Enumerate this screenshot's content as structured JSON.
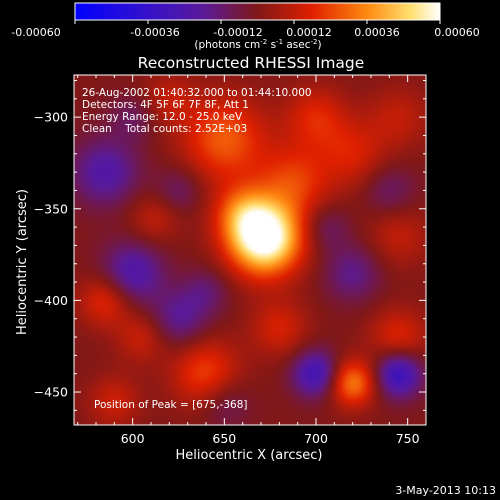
{
  "colorbar": {
    "tick_labels": [
      "-0.00060",
      "-0.00036",
      "-0.00012",
      "0.00012",
      "0.00036",
      "0.00060"
    ],
    "unit_main": "(photons cm",
    "unit_sup1": "-2",
    "unit_mid": " s",
    "unit_sup2": "-1",
    "unit_end": " asec",
    "unit_sup3": "-2",
    "unit_close": ")"
  },
  "annotations": {
    "line1": "26-Aug-2002 01:40:32.000 to 01:44:10.000",
    "line2": "Detectors: 4F 5F 6F 7F 8F, Att 1",
    "line3": "Energy Range: 12.0 - 25.0 keV",
    "line4": "Clean    Total counts: 2.52E+03",
    "peak": "Position of Peak = [675,-368]"
  },
  "footer": {
    "date": "3-May-2013 10:13"
  },
  "colors": {
    "background": "#000000",
    "text": "#ffffff",
    "colormap": [
      "#0000ff",
      "#5a1a9a",
      "#801818",
      "#ff3a00",
      "#ffd050",
      "#ffffff"
    ]
  },
  "chart_data": {
    "type": "heatmap",
    "title": "Reconstructed RHESSI Image",
    "xlabel": "Heliocentric X (arcsec)",
    "ylabel": "Heliocentric Y (arcsec)",
    "xlim": [
      568,
      760
    ],
    "ylim": [
      -468,
      -277
    ],
    "x_ticks": [
      600,
      650,
      700,
      750
    ],
    "y_ticks": [
      -300,
      -350,
      -400,
      -450
    ],
    "colorbar_range": [
      -0.0006,
      0.0006
    ],
    "peak_position": [
      675,
      -368
    ],
    "blobs": [
      {
        "x": 672,
        "y": -366,
        "amp": 0.00068,
        "s": 14
      },
      {
        "x": 660,
        "y": -352,
        "amp": 0.00022,
        "s": 11
      },
      {
        "x": 688,
        "y": -335,
        "amp": 0.00022,
        "s": 14
      },
      {
        "x": 650,
        "y": -312,
        "amp": 0.00028,
        "s": 16
      },
      {
        "x": 700,
        "y": -300,
        "amp": 0.00018,
        "s": 12
      },
      {
        "x": 720,
        "y": -320,
        "amp": 0.00016,
        "s": 13
      },
      {
        "x": 745,
        "y": -300,
        "amp": 0.00012,
        "s": 12
      },
      {
        "x": 745,
        "y": -365,
        "amp": 0.00012,
        "s": 12
      },
      {
        "x": 640,
        "y": -440,
        "amp": 0.00024,
        "s": 13
      },
      {
        "x": 720,
        "y": -445,
        "amp": 0.00034,
        "s": 9
      },
      {
        "x": 745,
        "y": -420,
        "amp": 0.00018,
        "s": 11
      },
      {
        "x": 605,
        "y": -420,
        "amp": 0.00014,
        "s": 10
      },
      {
        "x": 585,
        "y": -400,
        "amp": 0.0002,
        "s": 10
      },
      {
        "x": 612,
        "y": -355,
        "amp": 0.00012,
        "s": 10
      },
      {
        "x": 590,
        "y": -455,
        "amp": 0.00014,
        "s": 10
      },
      {
        "x": 680,
        "y": -415,
        "amp": 0.00016,
        "s": 11
      },
      {
        "x": 620,
        "y": -290,
        "amp": 0.00012,
        "s": 10
      },
      {
        "x": 585,
        "y": -330,
        "amp": -0.00022,
        "s": 13
      },
      {
        "x": 600,
        "y": -385,
        "amp": -0.00024,
        "s": 12
      },
      {
        "x": 625,
        "y": -410,
        "amp": -0.00018,
        "s": 11
      },
      {
        "x": 700,
        "y": -440,
        "amp": -0.0003,
        "s": 9
      },
      {
        "x": 745,
        "y": -440,
        "amp": -0.00034,
        "s": 9
      },
      {
        "x": 650,
        "y": -455,
        "amp": -0.00012,
        "s": 10
      },
      {
        "x": 720,
        "y": -385,
        "amp": -0.00016,
        "s": 11
      },
      {
        "x": 740,
        "y": -340,
        "amp": -0.00012,
        "s": 10
      },
      {
        "x": 705,
        "y": -360,
        "amp": -0.00012,
        "s": 9
      },
      {
        "x": 625,
        "y": -340,
        "amp": -0.00012,
        "s": 9
      },
      {
        "x": 640,
        "y": -395,
        "amp": -0.00012,
        "s": 9
      },
      {
        "x": 600,
        "y": -300,
        "amp": -0.0001,
        "s": 9
      }
    ]
  }
}
